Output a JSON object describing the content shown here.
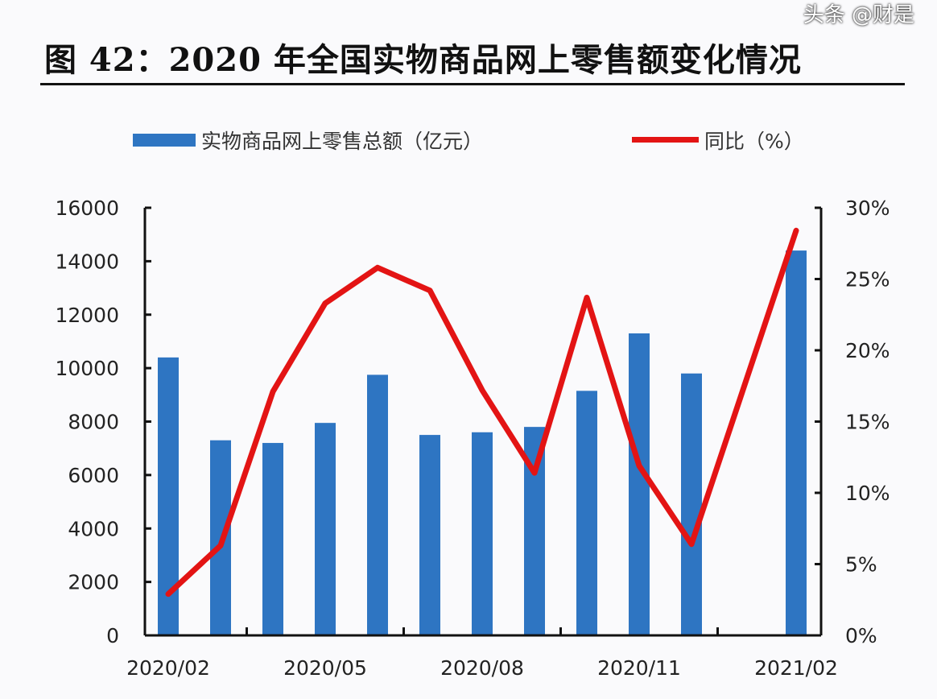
{
  "title": "图 42：2020 年全国实物商品网上零售额变化情况",
  "watermark": "头条 @财是",
  "chart_data": {
    "type": "bar+line",
    "categories": [
      "2020/02",
      "2020/03",
      "2020/04",
      "2020/05",
      "2020/06",
      "2020/07",
      "2020/08",
      "2020/09",
      "2020/10",
      "2020/11",
      "2020/12",
      "2021/01",
      "2021/02"
    ],
    "x_tick_labels": [
      "2020/02",
      "2020/05",
      "2020/08",
      "2020/11",
      "2021/02"
    ],
    "series": [
      {
        "name": "实物商品网上零售总额（亿元）",
        "type": "bar",
        "axis": "left",
        "color": "#2e75c2",
        "values": [
          10400,
          7300,
          7200,
          7950,
          9750,
          7500,
          7600,
          7800,
          9150,
          11300,
          9800,
          null,
          14400
        ]
      },
      {
        "name": "同比（%）",
        "type": "line",
        "axis": "right",
        "color": "#e31414",
        "values": [
          2.9,
          6.3,
          17.1,
          23.3,
          25.8,
          24.2,
          17.2,
          11.4,
          23.7,
          11.9,
          6.4,
          null,
          28.4
        ]
      }
    ],
    "left_axis": {
      "ylim": [
        0,
        16000
      ],
      "ticks": [
        "0",
        "2000",
        "4000",
        "6000",
        "8000",
        "10000",
        "12000",
        "14000",
        "16000"
      ]
    },
    "right_axis": {
      "ylim": [
        0,
        30
      ],
      "ticks": [
        "0%",
        "5%",
        "10%",
        "15%",
        "20%",
        "25%",
        "30%"
      ]
    },
    "legend_position": "top",
    "grid": false
  }
}
